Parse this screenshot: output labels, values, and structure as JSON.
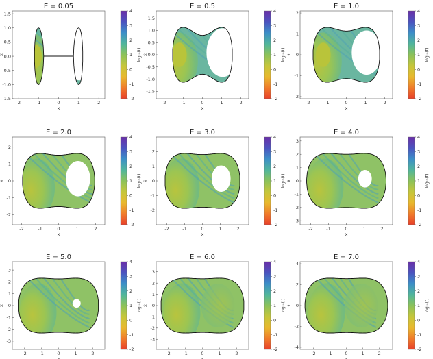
{
  "chart_data": {
    "type": "heatmap",
    "description": "Poincaré-section style phase-space maps colored by log10 of a chaos indicator",
    "xlabel": "x",
    "ylabel": "ẋ",
    "colorbar_label": "log₁₀(t)",
    "colorbar_range": [
      -2,
      4
    ],
    "colorbar_ticks": [
      "4",
      "3",
      "2",
      "1",
      "0",
      "-1",
      "-2"
    ],
    "colormap": [
      "#e8402a",
      "#f07a2a",
      "#e8b92e",
      "#c7c63a",
      "#8cc25a",
      "#52b79a",
      "#3c8fc8",
      "#4a55c0",
      "#6a2fa8"
    ],
    "panels": [
      {
        "title": "E = 0.05",
        "energy": 0.05,
        "xlim": [
          -2.3,
          2.3
        ],
        "ylim": [
          -1.5,
          1.6
        ],
        "xticks": [
          "-2",
          "-1",
          "0",
          "1",
          "2"
        ],
        "xtick_values": [
          -2,
          -1,
          0,
          1,
          2
        ],
        "yticks": [
          "1.5",
          "1.0",
          "0.5",
          "0.0",
          "-0.5",
          "-1.0",
          "-1.5"
        ],
        "ytick_values": [
          1.5,
          1.0,
          0.5,
          0.0,
          -0.5,
          -1.0,
          -1.5
        ]
      },
      {
        "title": "E = 0.5",
        "energy": 0.5,
        "xlim": [
          -2.4,
          2.4
        ],
        "ylim": [
          -1.8,
          1.8
        ],
        "xticks": [
          "-2",
          "-1",
          "0",
          "1",
          "2"
        ],
        "xtick_values": [
          -2,
          -1,
          0,
          1,
          2
        ],
        "yticks": [
          "1.5",
          "1.0",
          "0.5",
          "0.0",
          "-0.5",
          "-1.0",
          "-1.5"
        ],
        "ytick_values": [
          1.5,
          1.0,
          0.5,
          0.0,
          -0.5,
          -1.0,
          -1.5
        ]
      },
      {
        "title": "E = 1.0",
        "energy": 1.0,
        "xlim": [
          -2.4,
          2.4
        ],
        "ylim": [
          -2.1,
          2.1
        ],
        "xticks": [
          "-2",
          "-1",
          "0",
          "1",
          "2"
        ],
        "xtick_values": [
          -2,
          -1,
          0,
          1,
          2
        ],
        "yticks": [
          "2",
          "1",
          "0",
          "-1",
          "-2"
        ],
        "ytick_values": [
          2,
          1,
          0,
          -1,
          -2
        ]
      },
      {
        "title": "E = 2.0",
        "energy": 2.0,
        "xlim": [
          -2.5,
          2.5
        ],
        "ylim": [
          -2.6,
          2.6
        ],
        "xticks": [
          "-2",
          "-1",
          "0",
          "1",
          "2"
        ],
        "xtick_values": [
          -2,
          -1,
          0,
          1,
          2
        ],
        "yticks": [
          "2",
          "1",
          "0",
          "-1",
          "-2"
        ],
        "ytick_values": [
          2,
          1,
          0,
          -1,
          -2
        ]
      },
      {
        "title": "E = 3.0",
        "energy": 3.0,
        "xlim": [
          -2.6,
          2.6
        ],
        "ylim": [
          -3.0,
          3.0
        ],
        "xticks": [
          "-2",
          "-1",
          "0",
          "1",
          "2"
        ],
        "xtick_values": [
          -2,
          -1,
          0,
          1,
          2
        ],
        "yticks": [
          "2",
          "1",
          "0",
          "-1",
          "-2"
        ],
        "ytick_values": [
          2,
          1,
          0,
          -1,
          -2
        ]
      },
      {
        "title": "E = 4.0",
        "energy": 4.0,
        "xlim": [
          -2.6,
          2.6
        ],
        "ylim": [
          -3.3,
          3.3
        ],
        "xticks": [
          "-2",
          "-1",
          "0",
          "1",
          "2"
        ],
        "xtick_values": [
          -2,
          -1,
          0,
          1,
          2
        ],
        "yticks": [
          "3",
          "2",
          "1",
          "0",
          "-1",
          "-2",
          "-3"
        ],
        "ytick_values": [
          3,
          2,
          1,
          0,
          -1,
          -2,
          -3
        ]
      },
      {
        "title": "E = 5.0",
        "energy": 5.0,
        "xlim": [
          -2.7,
          2.7
        ],
        "ylim": [
          -3.7,
          3.7
        ],
        "xticks": [
          "-2",
          "-1",
          "0",
          "1",
          "2"
        ],
        "xtick_values": [
          -2,
          -1,
          0,
          1,
          2
        ],
        "yticks": [
          "3",
          "2",
          "1",
          "0",
          "-1",
          "-2",
          "-3"
        ],
        "ytick_values": [
          3,
          2,
          1,
          0,
          -1,
          -2,
          -3
        ]
      },
      {
        "title": "E = 6.0",
        "energy": 6.0,
        "xlim": [
          -2.7,
          2.7
        ],
        "ylim": [
          -3.9,
          3.9
        ],
        "xticks": [
          "-2",
          "-1",
          "0",
          "1",
          "2"
        ],
        "xtick_values": [
          -2,
          -1,
          0,
          1,
          2
        ],
        "yticks": [
          "3",
          "2",
          "1",
          "0",
          "-1",
          "-2",
          "-3"
        ],
        "ytick_values": [
          3,
          2,
          1,
          0,
          -1,
          -2,
          -3
        ]
      },
      {
        "title": "E = 7.0",
        "energy": 7.0,
        "xlim": [
          -2.8,
          2.8
        ],
        "ylim": [
          -4.2,
          4.2
        ],
        "xticks": [
          "-2",
          "-1",
          "0",
          "1",
          "2"
        ],
        "xtick_values": [
          -2,
          -1,
          0,
          1,
          2
        ],
        "yticks": [
          "4",
          "2",
          "0",
          "-2",
          "-4"
        ],
        "ytick_values": [
          4,
          2,
          0,
          -2,
          -4
        ]
      }
    ]
  }
}
